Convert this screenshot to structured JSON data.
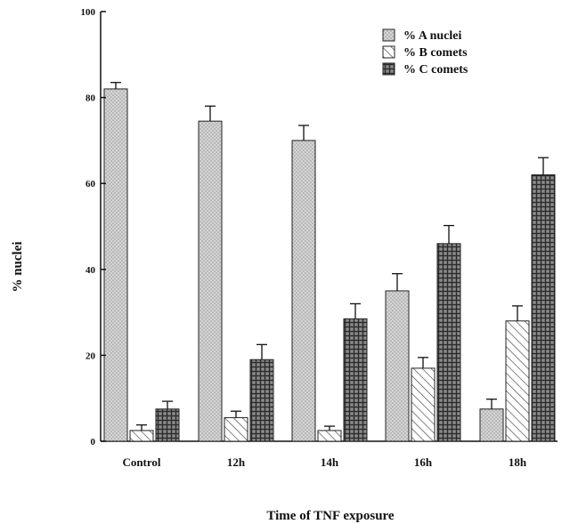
{
  "chart_data": {
    "type": "bar",
    "categories": [
      "Control",
      "12h",
      "14h",
      "16h",
      "18h"
    ],
    "series": [
      {
        "name": "% A nuclei",
        "pattern": "stipple",
        "values": [
          82,
          74.5,
          70,
          35,
          7.5
        ],
        "errors": [
          1.5,
          3.5,
          3.5,
          4,
          2.3
        ]
      },
      {
        "name": "% B comets",
        "pattern": "hatch",
        "values": [
          2.5,
          5.5,
          2.5,
          17,
          28
        ],
        "errors": [
          1.3,
          1.5,
          1,
          2.5,
          3.5
        ]
      },
      {
        "name": "% C comets",
        "pattern": "crosshatch",
        "values": [
          7.5,
          19,
          28.5,
          46,
          62
        ],
        "errors": [
          1.8,
          3.5,
          3.5,
          4.2,
          4
        ]
      }
    ],
    "ylim": [
      0,
      100
    ],
    "yticks": [
      0,
      20,
      40,
      60,
      80,
      100
    ],
    "ylabel": "% nuclei",
    "xlabel": "Time of TNF exposure",
    "legend_position": "top-right",
    "colors": {
      "stipple_bg": "#d4d4d4",
      "stipple_dot": "#9a9a9a",
      "hatch_line": "#333333",
      "cross_bg": "#8a8a8a",
      "cross_line": "#2a2a2a"
    }
  }
}
